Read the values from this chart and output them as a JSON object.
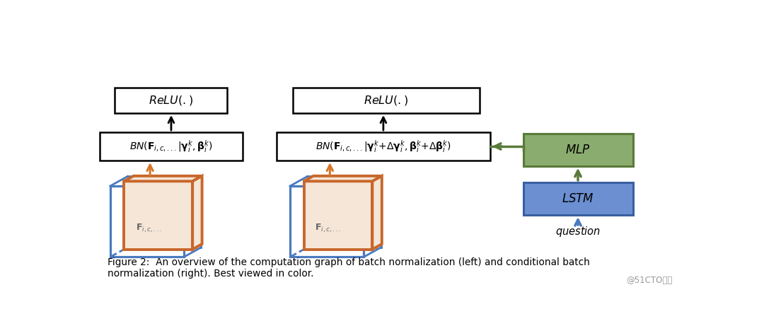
{
  "bg_color": "#ffffff",
  "fig_width": 10.8,
  "fig_height": 4.61,
  "caption": "Figure 2:  An overview of the computation graph of batch normalization (left) and conditional batch\nnormalization (right). Best viewed in color.",
  "watermark": "@51CTO博客",
  "box_color_green": "#8aac6e",
  "box_color_blue": "#6b8fd1",
  "cube_outer_color": "#4a7abf",
  "cube_inner_color": "#c8672a",
  "cube_face_color": "#f5e6d8",
  "arrow_orange": "#d4772a",
  "arrow_green": "#5a7a3a",
  "arrow_blue": "#4a7abf"
}
